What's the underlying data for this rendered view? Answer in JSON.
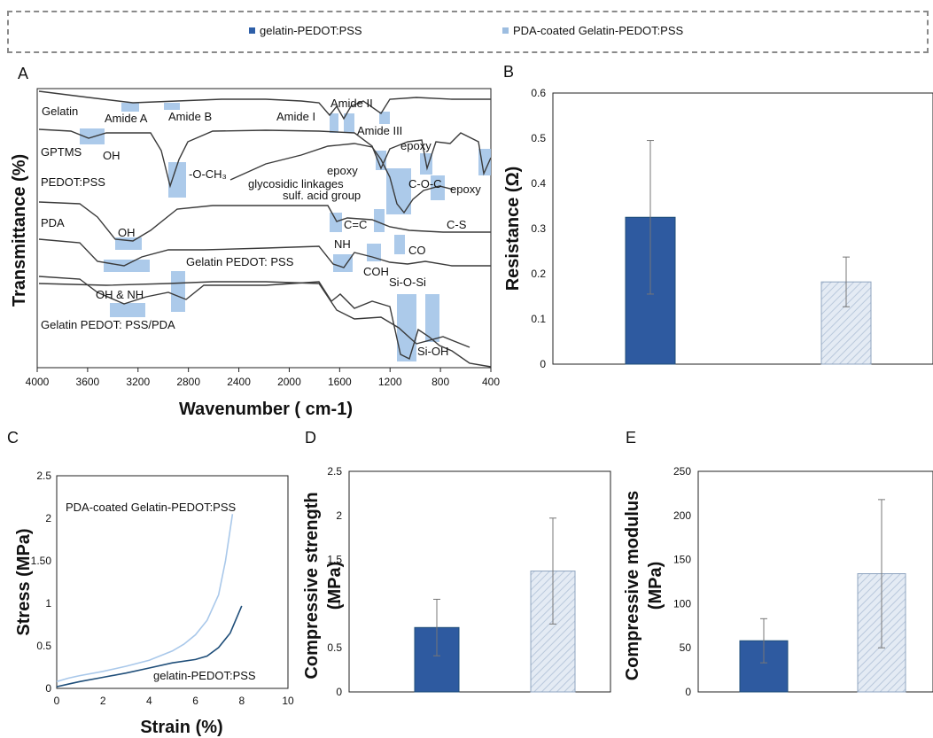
{
  "legend": {
    "items": [
      {
        "label": "gelatin-PEDOT:PSS",
        "color": "#2e5fa8"
      },
      {
        "label": "PDA-coated  Gelatin-PEDOT:PSS",
        "color": "#9dbde0"
      }
    ]
  },
  "panels": {
    "a": "A",
    "b": "B",
    "c": "C",
    "d": "D",
    "e": "E"
  },
  "colors": {
    "dark": "#1f4e79",
    "mid": "#2e5aa0",
    "light": "#d9e3ef",
    "band": "#9dc1e6",
    "spectrum": "#3a3a3a"
  },
  "chart_data": [
    {
      "type": "line",
      "title": "",
      "xlabel": "Wavenumber ( cm-1)",
      "ylabel": "Transmittance (%)",
      "xlim": [
        4000,
        400
      ],
      "x_ticks": [
        4000,
        3600,
        3200,
        2800,
        2400,
        2000,
        1600,
        1200,
        800,
        400
      ],
      "series": [
        {
          "name": "Gelatin"
        },
        {
          "name": "GPTMS"
        },
        {
          "name": "PEDOT:PSS"
        },
        {
          "name": "PDA"
        },
        {
          "name": "Gelatin PEDOT:  PSS"
        },
        {
          "name": "Gelatin PEDOT:  PSS/PDA"
        }
      ],
      "annotations": [
        "Amide A",
        "Amide B",
        "Amide I",
        "Amide II",
        "Amide III",
        "OH",
        "-O-CH₃",
        "epoxy",
        "epoxy",
        "glycosidic linkages",
        "sulf. acid group",
        "C-O-C",
        "epoxy",
        "C=C",
        "C-S",
        "OH",
        "NH",
        "COH",
        "CO",
        "OH & NH",
        "Si-O-Si",
        "Si-OH"
      ]
    },
    {
      "type": "bar",
      "ylabel": "Resistance (Ω)",
      "ylim": [
        0,
        0.6
      ],
      "y_ticks": [
        "0",
        "0.1",
        "0.2",
        "0.3",
        "0.4",
        "0.5",
        "0.6"
      ],
      "series": [
        {
          "name": "gelatin-PEDOT:PSS",
          "values": [
            0.325
          ],
          "error": [
            0.17
          ]
        },
        {
          "name": "PDA-coated  Gelatin-PEDOT:PSS",
          "values": [
            0.182
          ],
          "error": [
            0.055
          ]
        }
      ]
    },
    {
      "type": "line",
      "xlabel": "Strain (%)",
      "ylabel": "Stress (MPa)",
      "xlim": [
        0,
        10
      ],
      "ylim": [
        0,
        2.5
      ],
      "x_ticks": [
        "0",
        "2",
        "4",
        "6",
        "8",
        "10"
      ],
      "y_ticks": [
        "0",
        "0.5",
        "1",
        "1.50",
        "2",
        "2.5"
      ],
      "series": [
        {
          "name": "PDA-coated  Gelatin-PEDOT:PSS",
          "x": [
            0,
            0.5,
            1,
            2,
            3,
            4,
            5,
            5.5,
            6,
            6.5,
            7,
            7.3,
            7.6
          ],
          "y": [
            0.08,
            0.12,
            0.15,
            0.2,
            0.26,
            0.33,
            0.44,
            0.52,
            0.63,
            0.8,
            1.1,
            1.5,
            2.05
          ]
        },
        {
          "name": "gelatin-PEDOT:PSS",
          "x": [
            0,
            0.5,
            1,
            2,
            3,
            4,
            5,
            6,
            6.5,
            7,
            7.5,
            8
          ],
          "y": [
            0.02,
            0.05,
            0.08,
            0.13,
            0.18,
            0.24,
            0.3,
            0.34,
            0.38,
            0.48,
            0.65,
            0.97
          ]
        }
      ]
    },
    {
      "type": "bar",
      "ylabel": "Compressive strength (MPa)",
      "ylim": [
        0,
        2.5
      ],
      "y_ticks": [
        "0",
        "0.5",
        "1",
        "1.5",
        "2",
        "2.5"
      ],
      "series": [
        {
          "name": "gelatin-PEDOT:PSS",
          "values": [
            0.73
          ],
          "error": [
            0.32
          ]
        },
        {
          "name": "PDA-coated  Gelatin-PEDOT:PSS",
          "values": [
            1.37
          ],
          "error": [
            0.6
          ]
        }
      ]
    },
    {
      "type": "bar",
      "ylabel": "Compressive modulus (MPa)",
      "ylim": [
        0,
        250
      ],
      "y_ticks": [
        "0",
        "50",
        "100",
        "150",
        "200",
        "250"
      ],
      "series": [
        {
          "name": "gelatin-PEDOT:PSS",
          "values": [
            58
          ],
          "error": [
            25
          ]
        },
        {
          "name": "PDA-coated  Gelatin-PEDOT:PSS",
          "values": [
            134
          ],
          "error": [
            84
          ]
        }
      ]
    }
  ]
}
